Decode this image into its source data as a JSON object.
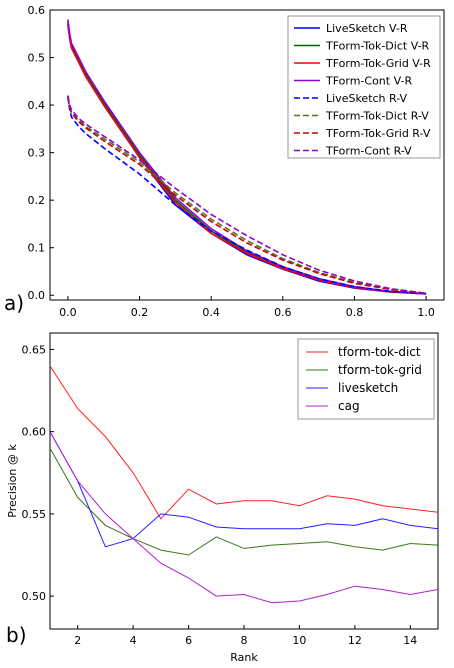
{
  "panels": {
    "a_label": "a)",
    "b_label": "b)"
  },
  "chart_data": [
    {
      "type": "line",
      "title": "",
      "xlabel": "",
      "ylabel": "",
      "xlim": [
        -0.05,
        1.05
      ],
      "ylim": [
        -0.01,
        0.6
      ],
      "xticks": [
        "0.0",
        "0.2",
        "0.4",
        "0.6",
        "0.8",
        "1.0"
      ],
      "yticks": [
        "0.0",
        "0.1",
        "0.2",
        "0.3",
        "0.4",
        "0.5",
        "0.6"
      ],
      "legend_position": "top-right",
      "series": [
        {
          "name": "LiveSketch V-R",
          "color": "#0000ff",
          "dash": "solid",
          "x": [
            0,
            0.005,
            0.01,
            0.03,
            0.05,
            0.1,
            0.2,
            0.3,
            0.4,
            0.5,
            0.6,
            0.7,
            0.8,
            0.9,
            1.0
          ],
          "y": [
            0.57,
            0.54,
            0.52,
            0.49,
            0.46,
            0.4,
            0.29,
            0.19,
            0.13,
            0.085,
            0.055,
            0.03,
            0.015,
            0.007,
            0.003
          ]
        },
        {
          "name": "TForm-Tok-Dict V-R",
          "color": "#006400",
          "dash": "solid",
          "x": [
            0,
            0.005,
            0.01,
            0.03,
            0.05,
            0.1,
            0.2,
            0.3,
            0.4,
            0.5,
            0.6,
            0.7,
            0.8,
            0.9,
            1.0
          ],
          "y": [
            0.575,
            0.545,
            0.525,
            0.495,
            0.465,
            0.405,
            0.295,
            0.2,
            0.135,
            0.09,
            0.058,
            0.033,
            0.017,
            0.008,
            0.003
          ]
        },
        {
          "name": "TForm-Tok-Grid V-R",
          "color": "#ff0000",
          "dash": "solid",
          "x": [
            0,
            0.005,
            0.01,
            0.03,
            0.05,
            0.1,
            0.2,
            0.3,
            0.4,
            0.5,
            0.6,
            0.7,
            0.8,
            0.9,
            1.0
          ],
          "y": [
            0.57,
            0.54,
            0.52,
            0.49,
            0.46,
            0.4,
            0.29,
            0.195,
            0.13,
            0.088,
            0.056,
            0.032,
            0.016,
            0.007,
            0.003
          ]
        },
        {
          "name": "TForm-Cont V-R",
          "color": "#9400d3",
          "dash": "solid",
          "x": [
            0,
            0.005,
            0.01,
            0.03,
            0.05,
            0.1,
            0.2,
            0.3,
            0.4,
            0.5,
            0.6,
            0.7,
            0.8,
            0.9,
            1.0
          ],
          "y": [
            0.58,
            0.55,
            0.53,
            0.5,
            0.47,
            0.41,
            0.3,
            0.205,
            0.14,
            0.093,
            0.06,
            0.035,
            0.018,
            0.008,
            0.003
          ]
        },
        {
          "name": "LiveSketch R-V",
          "color": "#0000ff",
          "dash": "dashed",
          "x": [
            0,
            0.005,
            0.01,
            0.03,
            0.05,
            0.1,
            0.2,
            0.3,
            0.4,
            0.5,
            0.6,
            0.7,
            0.8,
            0.9,
            1.0
          ],
          "y": [
            0.42,
            0.39,
            0.375,
            0.355,
            0.34,
            0.31,
            0.255,
            0.19,
            0.135,
            0.095,
            0.06,
            0.035,
            0.018,
            0.008,
            0.003
          ]
        },
        {
          "name": "TForm-Tok-Dict R-V",
          "color": "#4a7a1e",
          "dash": "dashed",
          "x": [
            0,
            0.005,
            0.01,
            0.03,
            0.05,
            0.1,
            0.2,
            0.3,
            0.4,
            0.5,
            0.6,
            0.7,
            0.8,
            0.9,
            1.0
          ],
          "y": [
            0.415,
            0.395,
            0.385,
            0.368,
            0.355,
            0.33,
            0.28,
            0.215,
            0.16,
            0.115,
            0.077,
            0.048,
            0.027,
            0.013,
            0.004
          ]
        },
        {
          "name": "TForm-Tok-Grid R-V",
          "color": "#cc0000",
          "dash": "dashed",
          "x": [
            0,
            0.005,
            0.01,
            0.03,
            0.05,
            0.1,
            0.2,
            0.3,
            0.4,
            0.5,
            0.6,
            0.7,
            0.8,
            0.9,
            1.0
          ],
          "y": [
            0.415,
            0.395,
            0.383,
            0.365,
            0.352,
            0.325,
            0.275,
            0.21,
            0.155,
            0.11,
            0.074,
            0.046,
            0.025,
            0.012,
            0.004
          ]
        },
        {
          "name": "TForm-Cont R-V",
          "color": "#9400d3",
          "dash": "dashed",
          "x": [
            0,
            0.005,
            0.01,
            0.03,
            0.05,
            0.1,
            0.2,
            0.3,
            0.4,
            0.5,
            0.6,
            0.7,
            0.8,
            0.9,
            1.0
          ],
          "y": [
            0.42,
            0.4,
            0.39,
            0.372,
            0.36,
            0.335,
            0.285,
            0.225,
            0.17,
            0.125,
            0.085,
            0.053,
            0.03,
            0.014,
            0.004
          ]
        }
      ]
    },
    {
      "type": "line",
      "title": "",
      "xlabel": "Rank",
      "ylabel": "Precision @ k",
      "xlim": [
        1,
        15
      ],
      "ylim": [
        0.48,
        0.66
      ],
      "xticks": [
        "2",
        "4",
        "6",
        "8",
        "10",
        "12",
        "14"
      ],
      "yticks": [
        "0.50",
        "0.55",
        "0.60",
        "0.65"
      ],
      "legend_position": "top-right",
      "x": [
        1,
        2,
        3,
        4,
        5,
        6,
        7,
        8,
        9,
        10,
        11,
        12,
        13,
        14,
        15
      ],
      "series": [
        {
          "name": "tform-tok-dict",
          "color": "#ff2020",
          "values": [
            0.64,
            0.614,
            0.597,
            0.575,
            0.547,
            0.565,
            0.556,
            0.558,
            0.558,
            0.555,
            0.561,
            0.559,
            0.555,
            0.553,
            0.551
          ]
        },
        {
          "name": "tform-tok-grid",
          "color": "#3a7a1a",
          "values": [
            0.59,
            0.56,
            0.543,
            0.535,
            0.528,
            0.525,
            0.536,
            0.529,
            0.531,
            0.532,
            0.533,
            0.53,
            0.528,
            0.532,
            0.531
          ]
        },
        {
          "name": "livesketch",
          "color": "#2020ff",
          "values": [
            0.6,
            0.57,
            0.53,
            0.535,
            0.55,
            0.548,
            0.542,
            0.541,
            0.541,
            0.541,
            0.544,
            0.543,
            0.547,
            0.543,
            0.541
          ]
        },
        {
          "name": "cag",
          "color": "#b020d0",
          "values": [
            0.6,
            0.57,
            0.55,
            0.535,
            0.52,
            0.511,
            0.5,
            0.501,
            0.496,
            0.497,
            0.501,
            0.506,
            0.504,
            0.501,
            0.504
          ]
        }
      ]
    }
  ]
}
